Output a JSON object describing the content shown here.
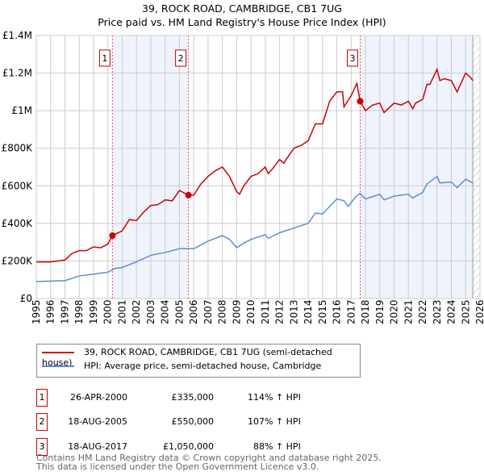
{
  "chart_data": {
    "type": "line",
    "title": "39, ROCK ROAD, CAMBRIDGE, CB1 7UG",
    "subtitle": "Price paid vs. HM Land Registry's House Price Index (HPI)",
    "ylim": [
      0,
      1400000
    ],
    "xlim": [
      1995,
      2026
    ],
    "y_ticks": [
      {
        "v": 0,
        "label": "£0"
      },
      {
        "v": 200000,
        "label": "£200K"
      },
      {
        "v": 400000,
        "label": "£400K"
      },
      {
        "v": 600000,
        "label": "£600K"
      },
      {
        "v": 800000,
        "label": "£800K"
      },
      {
        "v": 1000000,
        "label": "£1M"
      },
      {
        "v": 1200000,
        "label": "£1.2M"
      },
      {
        "v": 1400000,
        "label": "£1.4M"
      }
    ],
    "x_ticks": [
      "1995",
      "1996",
      "1997",
      "1998",
      "1999",
      "2000",
      "2001",
      "2002",
      "2003",
      "2004",
      "2005",
      "2006",
      "2007",
      "2008",
      "2009",
      "2010",
      "2011",
      "2012",
      "2013",
      "2014",
      "2015",
      "2016",
      "2017",
      "2018",
      "2019",
      "2020",
      "2021",
      "2022",
      "2023",
      "2024",
      "2025",
      "2026"
    ],
    "grid": true,
    "shaded_ranges": [
      [
        2000.32,
        2005.63
      ],
      [
        2017.63,
        2025.5
      ]
    ],
    "hatch_from": 2025.5,
    "colors": {
      "property": "#cc0000",
      "hpi": "#5b8fd4",
      "shade": "#eef3fc"
    },
    "series": [
      {
        "name": "39, ROCK ROAD, CAMBRIDGE, CB1 7UG (semi-detached house)",
        "x": [
          1995,
          1996,
          1997,
          1997.5,
          1998,
          1998.5,
          1999,
          1999.5,
          2000,
          2000.32,
          2001,
          2001.5,
          2002,
          2002.5,
          2003,
          2003.5,
          2004,
          2004.5,
          2005,
          2005.63,
          2006,
          2006.5,
          2007,
          2007.5,
          2008,
          2008.5,
          2009,
          2009.2,
          2009.5,
          2010,
          2010.5,
          2011,
          2011.2,
          2011.5,
          2012,
          2012.3,
          2012.5,
          2013,
          2013.5,
          2014,
          2014.5,
          2015,
          2015.5,
          2016,
          2016.4,
          2016.5,
          2017,
          2017.4,
          2017.63,
          2018,
          2018.5,
          2019,
          2019.3,
          2020,
          2020.5,
          2021,
          2021.3,
          2021.5,
          2022,
          2022.3,
          2022.5,
          2023,
          2023.2,
          2023.5,
          2024,
          2024.4,
          2025,
          2025.3,
          2025.5
        ],
        "values": [
          195000,
          195000,
          205000,
          240000,
          255000,
          255000,
          275000,
          270000,
          290000,
          335000,
          360000,
          420000,
          415000,
          460000,
          495000,
          500000,
          525000,
          520000,
          575000,
          550000,
          550000,
          610000,
          650000,
          680000,
          700000,
          650000,
          570000,
          555000,
          600000,
          650000,
          665000,
          700000,
          665000,
          690000,
          740000,
          720000,
          745000,
          800000,
          815000,
          840000,
          930000,
          930000,
          1050000,
          1100000,
          1100000,
          1020000,
          1080000,
          1145000,
          1050000,
          1000000,
          1030000,
          1040000,
          990000,
          1040000,
          1030000,
          1050000,
          1010000,
          1040000,
          1060000,
          1140000,
          1140000,
          1220000,
          1160000,
          1170000,
          1160000,
          1100000,
          1200000,
          1180000,
          1160000
        ]
      },
      {
        "name": "HPI: Average price, semi-detached house, Cambridge",
        "x": [
          1995,
          1997,
          1998,
          1999,
          2000,
          2000.5,
          2001,
          2002,
          2003,
          2004,
          2005,
          2005.6,
          2006,
          2007,
          2008,
          2008.5,
          2009,
          2009.5,
          2010,
          2011,
          2011.2,
          2012,
          2013,
          2014,
          2014.5,
          2015,
          2015.5,
          2016,
          2016.5,
          2016.8,
          2017.3,
          2017.6,
          2018,
          2019,
          2019.3,
          2020,
          2021,
          2021.3,
          2022,
          2022.3,
          2023,
          2023.2,
          2024,
          2024.4,
          2025,
          2025.5
        ],
        "values": [
          90000,
          95000,
          120000,
          130000,
          140000,
          160000,
          165000,
          195000,
          230000,
          245000,
          265000,
          265000,
          265000,
          305000,
          335000,
          315000,
          270000,
          295000,
          315000,
          340000,
          320000,
          350000,
          375000,
          400000,
          455000,
          450000,
          490000,
          530000,
          520000,
          490000,
          540000,
          560000,
          530000,
          555000,
          525000,
          545000,
          555000,
          535000,
          565000,
          610000,
          650000,
          615000,
          620000,
          590000,
          635000,
          615000
        ]
      }
    ],
    "sales": [
      {
        "n": "1",
        "x": 2000.32,
        "value": 335000,
        "date": "26-APR-2000",
        "price": "£335,000",
        "hpi": "114% ↑ HPI"
      },
      {
        "n": "2",
        "x": 2005.63,
        "value": 550000,
        "date": "18-AUG-2005",
        "price": "£550,000",
        "hpi": "107% ↑ HPI"
      },
      {
        "n": "3",
        "x": 2017.63,
        "value": 1050000,
        "date": "18-AUG-2017",
        "price": "£1,050,000",
        "hpi": "88% ↑ HPI"
      }
    ]
  },
  "footer": [
    "Contains HM Land Registry data © Crown copyright and database right 2025.",
    "This data is licensed under the Open Government Licence v3.0."
  ]
}
